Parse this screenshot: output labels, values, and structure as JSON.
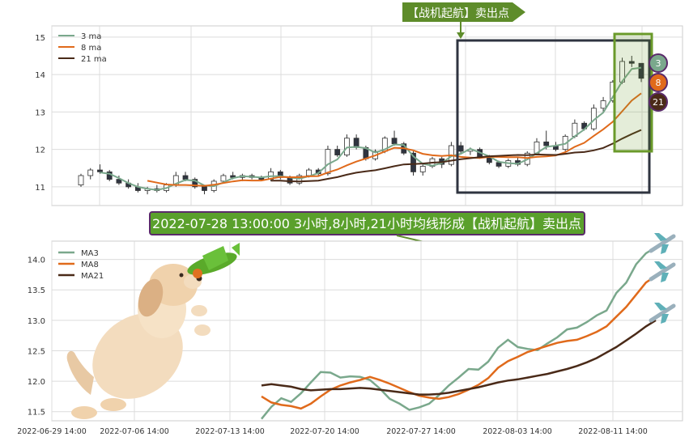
{
  "top_banner": "【战机起航】卖出点",
  "caption": "2022-07-28 13:00:00 3小时,8小时,21小时均线形成【战机起航】卖出点",
  "colors": {
    "ma3": "#7aa88c",
    "ma8": "#e06a1b",
    "ma21": "#4a2a18",
    "banner_green": "#5e8c2a",
    "caption_bg": "#5aa02c",
    "caption_border": "#5a2a6a",
    "box_dark": "#2f3440",
    "box_green": "#6a9a2a",
    "grid": "#dcdcdc"
  },
  "icons": {
    "dog": "puppy-jumping-icon",
    "plane_toy": "toy-airplane-icon",
    "jets": "jet-plane-icon"
  },
  "chart_data": [
    {
      "type": "line",
      "subtype": "candlestick-with-moving-averages",
      "title": "",
      "xlabel": "",
      "ylabel": "",
      "ylim": [
        10.5,
        15.3
      ],
      "yticks": [
        11,
        12,
        13,
        14,
        15
      ],
      "grid": true,
      "legend_position": "top-left",
      "legend": [
        "3 ma",
        "8 ma",
        "21 ma"
      ],
      "endpoint_badges": [
        "3",
        "8",
        "21"
      ],
      "candles_ohlc": [
        [
          11.05,
          11.35,
          11.0,
          11.3
        ],
        [
          11.3,
          11.5,
          11.2,
          11.45
        ],
        [
          11.45,
          11.6,
          11.35,
          11.4
        ],
        [
          11.4,
          11.45,
          11.15,
          11.2
        ],
        [
          11.2,
          11.3,
          11.05,
          11.1
        ],
        [
          11.1,
          11.2,
          10.95,
          11.0
        ],
        [
          11.0,
          11.1,
          10.85,
          10.9
        ],
        [
          10.9,
          11.0,
          10.8,
          10.95
        ],
        [
          10.95,
          11.05,
          10.85,
          10.9
        ],
        [
          10.9,
          11.1,
          10.85,
          11.05
        ],
        [
          11.05,
          11.4,
          11.0,
          11.3
        ],
        [
          11.3,
          11.4,
          11.15,
          11.2
        ],
        [
          11.2,
          11.25,
          10.95,
          11.0
        ],
        [
          11.0,
          11.05,
          10.8,
          10.9
        ],
        [
          10.9,
          11.2,
          10.85,
          11.15
        ],
        [
          11.15,
          11.35,
          11.1,
          11.3
        ],
        [
          11.3,
          11.4,
          11.2,
          11.25
        ],
        [
          11.25,
          11.35,
          11.15,
          11.3
        ],
        [
          11.3,
          11.35,
          11.2,
          11.25
        ],
        [
          11.25,
          11.3,
          11.15,
          11.2
        ],
        [
          11.2,
          11.5,
          11.15,
          11.4
        ],
        [
          11.4,
          11.45,
          11.2,
          11.25
        ],
        [
          11.25,
          11.3,
          11.05,
          11.1
        ],
        [
          11.1,
          11.35,
          11.05,
          11.3
        ],
        [
          11.3,
          11.5,
          11.25,
          11.45
        ],
        [
          11.45,
          11.5,
          11.3,
          11.35
        ],
        [
          11.35,
          12.1,
          11.3,
          12.0
        ],
        [
          12.0,
          12.1,
          11.8,
          11.85
        ],
        [
          11.85,
          12.4,
          11.8,
          12.3
        ],
        [
          12.3,
          12.4,
          12.0,
          12.05
        ],
        [
          12.05,
          12.1,
          11.7,
          11.75
        ],
        [
          11.75,
          12.0,
          11.7,
          11.95
        ],
        [
          11.95,
          12.35,
          11.9,
          12.3
        ],
        [
          12.3,
          12.5,
          12.1,
          12.15
        ],
        [
          12.15,
          12.2,
          11.85,
          11.9
        ],
        [
          11.9,
          11.95,
          11.3,
          11.4
        ],
        [
          11.4,
          11.6,
          11.3,
          11.55
        ],
        [
          11.55,
          11.8,
          11.5,
          11.75
        ],
        [
          11.75,
          11.8,
          11.5,
          11.6
        ],
        [
          11.6,
          12.2,
          11.55,
          12.1
        ],
        [
          12.1,
          12.2,
          11.9,
          11.95
        ],
        [
          11.95,
          12.05,
          11.85,
          12.0
        ],
        [
          12.0,
          12.05,
          11.75,
          11.8
        ],
        [
          11.8,
          11.85,
          11.6,
          11.65
        ],
        [
          11.65,
          11.7,
          11.5,
          11.55
        ],
        [
          11.55,
          11.75,
          11.5,
          11.7
        ],
        [
          11.7,
          11.8,
          11.55,
          11.6
        ],
        [
          11.6,
          11.95,
          11.55,
          11.9
        ],
        [
          11.9,
          12.3,
          11.85,
          12.2
        ],
        [
          12.2,
          12.5,
          12.0,
          12.1
        ],
        [
          12.1,
          12.2,
          11.95,
          12.0
        ],
        [
          12.0,
          12.4,
          11.95,
          12.35
        ],
        [
          12.35,
          12.8,
          12.3,
          12.7
        ],
        [
          12.7,
          12.75,
          12.5,
          12.55
        ],
        [
          12.55,
          13.2,
          12.5,
          13.1
        ],
        [
          13.1,
          13.4,
          13.0,
          13.3
        ],
        [
          13.3,
          13.85,
          13.25,
          13.8
        ],
        [
          13.8,
          14.45,
          13.75,
          14.35
        ],
        [
          14.35,
          14.5,
          14.2,
          14.3
        ],
        [
          14.3,
          14.3,
          13.8,
          13.9
        ]
      ]
    },
    {
      "type": "line",
      "title": "",
      "xlabel": "",
      "ylabel": "",
      "ylim": [
        11.35,
        14.3
      ],
      "yticks": [
        11.5,
        12.0,
        12.5,
        13.0,
        13.5,
        14.0
      ],
      "grid": true,
      "legend_position": "top-left",
      "x_tick_labels": [
        "2022-06-29 14:00",
        "2022-07-06 14:00",
        "2022-07-13 14:00",
        "2022-07-20 14:00",
        "2022-07-27 14:00",
        "2022-08-03 14:00",
        "2022-08-11 14:00"
      ],
      "series": [
        {
          "name": "MA3",
          "values": [
            11.38,
            11.58,
            11.72,
            11.66,
            11.8,
            11.98,
            12.15,
            12.14,
            12.06,
            12.08,
            12.07,
            12.02,
            11.88,
            11.71,
            11.63,
            11.53,
            11.57,
            11.63,
            11.77,
            11.93,
            12.06,
            12.2,
            12.19,
            12.32,
            12.55,
            12.68,
            12.56,
            12.53,
            12.51,
            12.62,
            12.72,
            12.85,
            12.88,
            12.97,
            13.08,
            13.16,
            13.45,
            13.62,
            13.92,
            14.1,
            14.2
          ]
        },
        {
          "name": "MA8",
          "values": [
            11.75,
            11.65,
            11.61,
            11.59,
            11.55,
            11.63,
            11.75,
            11.86,
            11.93,
            11.98,
            12.02,
            12.07,
            12.02,
            11.96,
            11.89,
            11.82,
            11.76,
            11.73,
            11.71,
            11.74,
            11.79,
            11.86,
            11.94,
            12.05,
            12.22,
            12.33,
            12.4,
            12.48,
            12.53,
            12.58,
            12.63,
            12.66,
            12.68,
            12.74,
            12.81,
            12.9,
            13.06,
            13.22,
            13.42,
            13.62,
            13.73
          ]
        },
        {
          "name": "MA21",
          "values": [
            11.93,
            11.95,
            11.93,
            11.91,
            11.87,
            11.85,
            11.86,
            11.87,
            11.87,
            11.88,
            11.89,
            11.88,
            11.86,
            11.84,
            11.82,
            11.8,
            11.78,
            11.78,
            11.79,
            11.81,
            11.84,
            11.87,
            11.9,
            11.94,
            11.98,
            12.01,
            12.03,
            12.06,
            12.09,
            12.12,
            12.16,
            12.2,
            12.25,
            12.31,
            12.38,
            12.47,
            12.56,
            12.67,
            12.78,
            12.9,
            13.0
          ]
        }
      ]
    }
  ]
}
